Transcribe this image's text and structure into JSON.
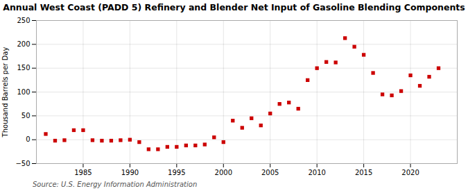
{
  "chart_data": {
    "type": "scatter",
    "title": "Annual West Coast (PADD 5) Refinery and Blender Net Input of Gasoline Blending Components",
    "ylabel": "Thousand Barrels per Day",
    "source": "Source: U.S. Energy Information Administration",
    "x": [
      1981,
      1982,
      1983,
      1984,
      1985,
      1986,
      1987,
      1988,
      1989,
      1990,
      1991,
      1992,
      1993,
      1994,
      1995,
      1996,
      1997,
      1998,
      1999,
      2000,
      2001,
      2002,
      2003,
      2004,
      2005,
      2006,
      2007,
      2008,
      2009,
      2010,
      2011,
      2012,
      2013,
      2014,
      2015,
      2016,
      2017,
      2018,
      2019,
      2020,
      2021,
      2022,
      2023
    ],
    "values": [
      12,
      -2,
      -1,
      20,
      20,
      -1,
      -2,
      -2,
      -1,
      0,
      -5,
      -20,
      -20,
      -15,
      -15,
      -12,
      -12,
      -10,
      5,
      -5,
      40,
      25,
      45,
      30,
      55,
      75,
      78,
      65,
      125,
      150,
      163,
      162,
      213,
      195,
      178,
      140,
      95,
      93,
      102,
      135,
      113,
      132,
      150
    ],
    "color": "#cc0000",
    "marker": "square",
    "xlim": [
      1980,
      2025
    ],
    "ylim": [
      -50,
      250
    ],
    "xticks": [
      1985,
      1990,
      1995,
      2000,
      2005,
      2010,
      2015,
      2020
    ],
    "yticks": [
      -50,
      0,
      50,
      100,
      150,
      200,
      250
    ],
    "grid": true
  }
}
